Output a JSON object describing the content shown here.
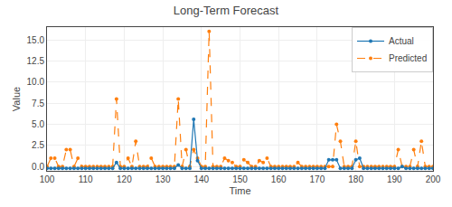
{
  "chart_data": {
    "type": "line",
    "title": "Long-Term Forecast",
    "xlabel": "Time",
    "ylabel": "Value",
    "xlim": [
      100,
      200
    ],
    "ylim": [
      -0.5,
      16.5
    ],
    "xticks": [
      100,
      110,
      120,
      130,
      140,
      150,
      160,
      170,
      180,
      190,
      200
    ],
    "yticks": [
      {
        "value": 0,
        "label": "0.0"
      },
      2.5,
      {
        "value": 5,
        "label": "5.0"
      },
      7.5,
      {
        "value": 10,
        "label": "10.0"
      },
      12.5,
      {
        "value": 15,
        "label": "15.0"
      }
    ],
    "grid": true,
    "legend": "upper right",
    "x": [
      100,
      101,
      102,
      103,
      104,
      105,
      106,
      107,
      108,
      109,
      110,
      111,
      112,
      113,
      114,
      115,
      116,
      117,
      118,
      119,
      120,
      121,
      122,
      123,
      124,
      125,
      126,
      127,
      128,
      129,
      130,
      131,
      132,
      133,
      134,
      135,
      136,
      137,
      138,
      139,
      140,
      141,
      142,
      143,
      144,
      145,
      146,
      147,
      148,
      149,
      150,
      151,
      152,
      153,
      154,
      155,
      156,
      157,
      158,
      159,
      160,
      161,
      162,
      163,
      164,
      165,
      166,
      167,
      168,
      169,
      170,
      171,
      172,
      173,
      174,
      175,
      176,
      177,
      178,
      179,
      180,
      181,
      182,
      183,
      184,
      185,
      186,
      187,
      188,
      189,
      190,
      191,
      192,
      193,
      194,
      195,
      196,
      197,
      198,
      199,
      200
    ],
    "series": [
      {
        "name": "Actual",
        "color": "#1f77b4",
        "marker": "circle",
        "line_style": "solid",
        "values": [
          -0.2,
          -0.2,
          -0.2,
          -0.2,
          -0.2,
          -0.2,
          -0.2,
          -0.2,
          -0.2,
          -0.2,
          -0.2,
          -0.2,
          -0.2,
          -0.2,
          -0.2,
          -0.2,
          -0.2,
          -0.2,
          0.5,
          -0.2,
          -0.2,
          -0.2,
          -0.2,
          -0.2,
          -0.2,
          -0.2,
          -0.2,
          -0.2,
          -0.2,
          -0.2,
          -0.2,
          -0.2,
          -0.2,
          -0.2,
          0.2,
          -0.2,
          -0.2,
          -0.2,
          5.6,
          0.7,
          -0.2,
          -0.2,
          -0.2,
          -0.2,
          -0.2,
          -0.2,
          -0.2,
          -0.2,
          -0.2,
          -0.2,
          -0.2,
          -0.2,
          -0.2,
          -0.2,
          -0.2,
          -0.2,
          -0.2,
          -0.2,
          -0.2,
          -0.2,
          -0.2,
          -0.2,
          -0.2,
          -0.2,
          -0.2,
          -0.2,
          -0.2,
          -0.2,
          -0.2,
          -0.2,
          -0.2,
          -0.2,
          -0.2,
          0.8,
          0.8,
          0.8,
          -0.2,
          -0.2,
          -0.2,
          -0.2,
          0.8,
          1.0,
          -0.2,
          -0.2,
          -0.2,
          -0.2,
          -0.2,
          -0.2,
          -0.2,
          -0.2,
          -0.2,
          -0.2,
          0.0,
          -0.2,
          -0.2,
          -0.2,
          -0.2,
          -0.2,
          -0.2,
          -0.2,
          -0.2
        ]
      },
      {
        "name": "Predicted",
        "color": "#ff7f0e",
        "marker": "circle",
        "line_style": "dash",
        "values": [
          0.0,
          1.0,
          1.0,
          0.0,
          0.0,
          2.0,
          2.0,
          0.0,
          1.0,
          0.0,
          0.0,
          0.0,
          0.0,
          0.0,
          0.0,
          0.0,
          0.0,
          0.0,
          8.0,
          0.0,
          0.0,
          1.0,
          0.0,
          3.0,
          0.0,
          0.0,
          0.0,
          1.0,
          0.0,
          0.0,
          0.0,
          0.0,
          0.0,
          0.0,
          8.0,
          0.0,
          2.0,
          0.0,
          2.0,
          1.0,
          0.0,
          0.0,
          16.0,
          0.0,
          0.0,
          0.0,
          1.0,
          0.7,
          0.5,
          0.0,
          0.0,
          0.8,
          0.5,
          0.0,
          0.0,
          0.7,
          0.5,
          1.0,
          0.0,
          0.0,
          0.0,
          0.0,
          0.0,
          0.0,
          0.0,
          0.5,
          0.0,
          0.0,
          0.0,
          0.0,
          0.0,
          0.0,
          0.0,
          0.0,
          0.0,
          5.0,
          3.0,
          0.0,
          0.0,
          0.0,
          3.0,
          0.0,
          0.0,
          0.0,
          0.0,
          0.0,
          0.0,
          0.0,
          0.0,
          0.0,
          0.0,
          2.0,
          0.0,
          0.0,
          0.0,
          2.0,
          0.0,
          3.0,
          0.0,
          0.0,
          0.0
        ]
      }
    ]
  }
}
